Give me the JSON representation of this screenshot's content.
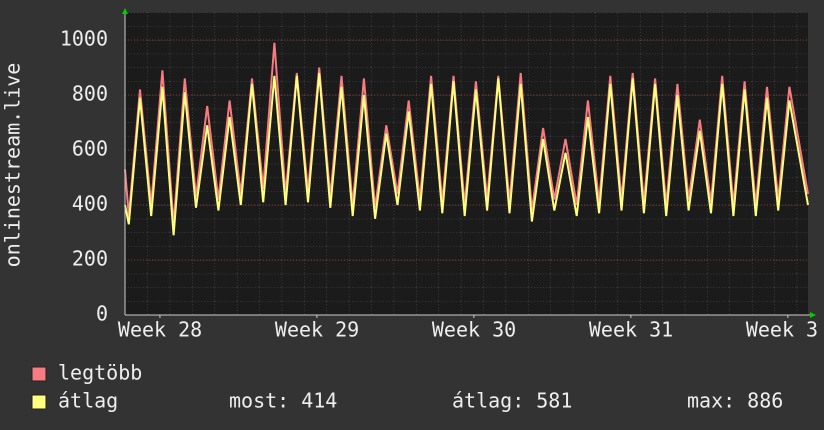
{
  "chart_data": {
    "type": "line",
    "y_label": "onlinestream.live",
    "x": [
      0,
      0.17,
      0.67,
      1.17,
      1.67,
      2.17,
      2.67,
      3.17,
      3.67,
      4.17,
      4.67,
      5.17,
      5.67,
      6.17,
      6.67,
      7.17,
      7.67,
      8.17,
      8.67,
      9.17,
      9.67,
      10.17,
      10.67,
      11.17,
      11.67,
      12.17,
      12.67,
      13.17,
      13.67,
      14.17,
      14.67,
      15.17,
      15.67,
      16.17,
      16.67,
      17.17,
      17.67,
      18.17,
      18.67,
      19.17,
      19.67,
      20.17,
      20.67,
      21.17,
      21.67,
      22.17,
      22.67,
      23.17,
      23.67,
      24.17,
      24.67,
      25.17,
      25.67,
      26.17,
      26.67,
      27.17,
      27.67,
      28.17,
      28.67,
      29.17,
      29.67,
      30.5
    ],
    "series": [
      {
        "name": "legtöbb",
        "color": "#f77b80",
        "values": [
          530,
          360,
          820,
          400,
          890,
          330,
          860,
          430,
          760,
          420,
          780,
          440,
          860,
          460,
          990,
          440,
          880,
          450,
          900,
          430,
          870,
          400,
          860,
          390,
          690,
          440,
          780,
          420,
          870,
          410,
          870,
          400,
          850,
          420,
          870,
          410,
          880,
          380,
          680,
          420,
          640,
          400,
          780,
          410,
          870,
          420,
          880,
          410,
          860,
          400,
          840,
          420,
          710,
          410,
          870,
          400,
          850,
          400,
          830,
          420,
          830,
          440
        ]
      },
      {
        "name": "átlag",
        "color": "#ffff80",
        "values": [
          400,
          330,
          790,
          360,
          830,
          290,
          810,
          390,
          690,
          380,
          720,
          400,
          840,
          410,
          870,
          400,
          870,
          410,
          880,
          390,
          830,
          360,
          800,
          350,
          660,
          400,
          740,
          380,
          840,
          370,
          850,
          360,
          820,
          380,
          860,
          370,
          840,
          340,
          640,
          380,
          590,
          360,
          720,
          370,
          840,
          380,
          860,
          370,
          840,
          360,
          800,
          380,
          670,
          370,
          840,
          360,
          820,
          360,
          790,
          380,
          780,
          400
        ]
      }
    ],
    "xlim": [
      0,
      30.5
    ],
    "xticks": [
      {
        "value": 1.56,
        "label": "Week 28"
      },
      {
        "value": 8.57,
        "label": "Week 29"
      },
      {
        "value": 15.58,
        "label": "Week 30"
      },
      {
        "value": 22.59,
        "label": "Week 31"
      },
      {
        "value": 29.6,
        "label": "Week 3"
      }
    ],
    "ylim": [
      0,
      1100
    ],
    "yticks": [
      0,
      200,
      400,
      600,
      800,
      1000
    ],
    "grid": true,
    "stats": [
      {
        "label": "most:",
        "value": 414
      },
      {
        "label": "átlag:",
        "value": 581
      },
      {
        "label": "max:",
        "value": 886
      }
    ]
  }
}
